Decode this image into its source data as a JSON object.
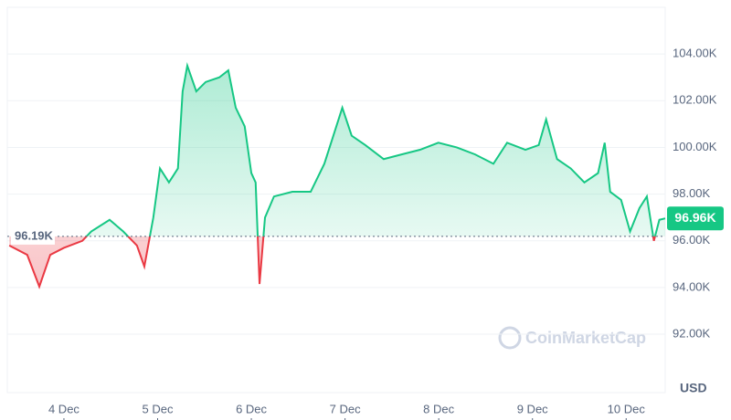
{
  "chart_data": {
    "type": "line",
    "x": [
      -14,
      -9.4,
      -6.3,
      -3.5,
      0,
      4.7,
      7,
      11.7,
      15.2,
      18.7,
      20.6,
      22.9,
      24.6,
      26.9,
      29.2,
      30.4,
      31.6,
      33.9,
      36.3,
      39.8,
      42.1,
      44,
      46.3,
      48,
      49.1,
      50.1,
      51.5,
      53.8,
      58.5,
      63.2,
      66.7,
      69,
      71.3,
      73.7,
      77.2,
      81.9,
      86.5,
      91.2,
      95.9,
      100.6,
      105.3,
      110,
      113.5,
      118.2,
      121.6,
      123.5,
      126.3,
      129.8,
      133.3,
      136.8,
      138.5,
      139.9,
      142.7,
      145,
      147.4,
      149.3,
      151.1,
      152.5,
      154
    ],
    "values": [
      95800,
      95400,
      94040,
      95400,
      95700,
      96000,
      96400,
      96900,
      96400,
      95800,
      94900,
      97000,
      99100,
      98500,
      99100,
      102400,
      103500,
      102400,
      102800,
      103000,
      103300,
      101700,
      100900,
      98900,
      98500,
      94150,
      97000,
      97900,
      98100,
      98100,
      99300,
      100500,
      101700,
      100500,
      100100,
      99500,
      99700,
      99900,
      100200,
      100000,
      99700,
      99300,
      100200,
      99900,
      100100,
      101200,
      99500,
      99100,
      98500,
      98900,
      100200,
      98100,
      97750,
      96400,
      97400,
      97900,
      96000,
      96900,
      96960
    ],
    "up_color": "#16c784",
    "down_color": "#ea3943",
    "baseline": {
      "value": 96190,
      "label": "96.19K"
    },
    "last": {
      "value": 96960,
      "label": "96.96K"
    },
    "xlim": [
      -14.5,
      154
    ],
    "xticks": [
      {
        "value": 0,
        "label": "4 Dec"
      },
      {
        "value": 24,
        "label": "5 Dec"
      },
      {
        "value": 48,
        "label": "6 Dec"
      },
      {
        "value": 72,
        "label": "7 Dec"
      },
      {
        "value": 96,
        "label": "8 Dec"
      },
      {
        "value": 120,
        "label": "9 Dec"
      },
      {
        "value": 144,
        "label": "10 Dec"
      }
    ],
    "ylim": [
      89500,
      106000
    ],
    "yticks": [
      {
        "value": 92000,
        "label": "92.00K"
      },
      {
        "value": 94000,
        "label": "94.00K"
      },
      {
        "value": 96000,
        "label": "96.00K"
      },
      {
        "value": 98000,
        "label": "98.00K"
      },
      {
        "value": 100000,
        "label": "100.00K"
      },
      {
        "value": 102000,
        "label": "102.00K"
      },
      {
        "value": 104000,
        "label": "104.00K"
      }
    ],
    "grid": true,
    "y_unit": "USD",
    "watermark": "CoinMarketCap"
  }
}
